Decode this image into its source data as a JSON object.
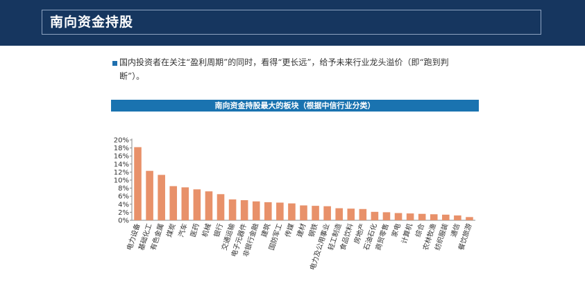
{
  "header": {
    "title": "南向资金持股"
  },
  "bullet": {
    "text": "国内投资者在关注“盈利周期”的同时，看得“更长远”，给予未来行业龙头溢价（即“跑到判断”）。"
  },
  "chart_data": {
    "type": "bar",
    "title": "南向资金持股最大的板块（根据中信行业分类）",
    "xlabel": "",
    "ylabel": "",
    "ylim": [
      0,
      20
    ],
    "yticks": [
      "0%",
      "2%",
      "4%",
      "6%",
      "8%",
      "10%",
      "12%",
      "14%",
      "16%",
      "18%",
      "20%"
    ],
    "categories": [
      "电力设备",
      "基础化工",
      "有色金属",
      "煤炭",
      "汽车",
      "医药",
      "机械",
      "银行",
      "交通运输",
      "电子元器件",
      "非银行金融",
      "建筑",
      "国防军工",
      "传媒",
      "建材",
      "钢铁",
      "电力及公用事业",
      "轻工制造",
      "食品饮料",
      "房地产",
      "石油石化",
      "商贸零售",
      "家电",
      "计算机",
      "综合",
      "农林牧渔",
      "纺织服装",
      "通信",
      "餐饮旅游"
    ],
    "values": [
      18.2,
      12.3,
      11.3,
      8.5,
      8.2,
      7.7,
      7.2,
      6.5,
      5.2,
      5.0,
      4.7,
      4.5,
      4.4,
      4.2,
      3.7,
      3.6,
      3.5,
      3.0,
      2.9,
      2.8,
      2.1,
      2.0,
      1.8,
      1.7,
      1.6,
      1.5,
      1.4,
      1.2,
      0.8
    ],
    "bar_color": "#e8916a",
    "grid": false,
    "legend": "none"
  }
}
